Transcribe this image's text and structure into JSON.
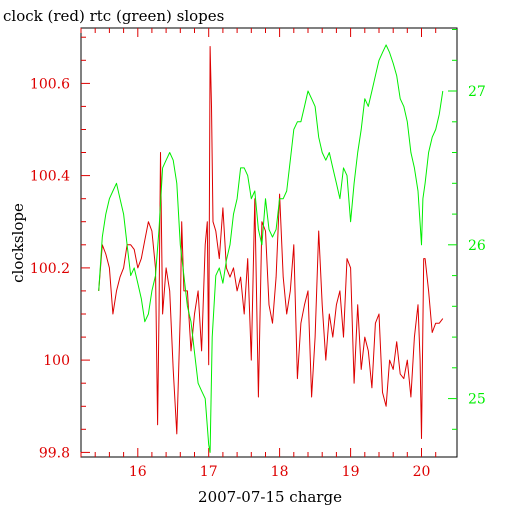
{
  "chart_data": {
    "type": "line",
    "title": "clock (red) rtc (green) slopes",
    "xlabel": "2007-07-15 charge",
    "ylabel": "clockslope",
    "xlim": [
      15.2,
      20.5
    ],
    "ylim": [
      99.79,
      100.72
    ],
    "y2lim": [
      24.62,
      27.41
    ],
    "x_ticks": [
      {
        "value": 16,
        "label": "16"
      },
      {
        "value": 17,
        "label": "17"
      },
      {
        "value": 18,
        "label": "18"
      },
      {
        "value": 19,
        "label": "19"
      },
      {
        "value": 20,
        "label": "20"
      }
    ],
    "y_ticks": [
      {
        "value": 99.8,
        "label": "99.8"
      },
      {
        "value": 100,
        "label": "100"
      },
      {
        "value": 100.2,
        "label": "100.2"
      },
      {
        "value": 100.4,
        "label": "100.4"
      },
      {
        "value": 100.6,
        "label": "100.6"
      }
    ],
    "y2_ticks": [
      {
        "value": 25,
        "label": "25"
      },
      {
        "value": 26,
        "label": "26"
      },
      {
        "value": 27,
        "label": "27"
      }
    ],
    "colors": {
      "clock": "#dd0000",
      "rtc": "#00ee00",
      "axes": "#000000"
    },
    "series": [
      {
        "axis": "left",
        "color": "#dd0000",
        "x": [
          15.45,
          15.5,
          15.55,
          15.6,
          15.65,
          15.7,
          15.75,
          15.8,
          15.85,
          15.9,
          15.95,
          16.0,
          16.05,
          16.1,
          16.15,
          16.2,
          16.25,
          16.28,
          16.3,
          16.32,
          16.35,
          16.4,
          16.45,
          16.5,
          16.55,
          16.6,
          16.62,
          16.65,
          16.7,
          16.75,
          16.8,
          16.85,
          16.9,
          16.95,
          16.98,
          17.0,
          17.02,
          17.04,
          17.06,
          17.1,
          17.15,
          17.2,
          17.25,
          17.3,
          17.35,
          17.4,
          17.45,
          17.5,
          17.55,
          17.6,
          17.65,
          17.7,
          17.75,
          17.8,
          17.85,
          17.9,
          17.95,
          18.0,
          18.05,
          18.1,
          18.15,
          18.2,
          18.25,
          18.3,
          18.35,
          18.4,
          18.45,
          18.5,
          18.55,
          18.6,
          18.65,
          18.7,
          18.75,
          18.8,
          18.85,
          18.9,
          18.95,
          19.0,
          19.05,
          19.1,
          19.15,
          19.2,
          19.25,
          19.3,
          19.35,
          19.4,
          19.45,
          19.5,
          19.55,
          19.6,
          19.65,
          19.7,
          19.75,
          19.8,
          19.85,
          19.9,
          19.95,
          19.98,
          20.0,
          20.03,
          20.05,
          20.1,
          20.15,
          20.2,
          20.25,
          20.3
        ],
        "y": [
          100.15,
          100.25,
          100.23,
          100.2,
          100.1,
          100.15,
          100.18,
          100.2,
          100.25,
          100.25,
          100.24,
          100.2,
          100.22,
          100.26,
          100.3,
          100.28,
          100.2,
          99.86,
          100.1,
          100.45,
          100.1,
          100.2,
          100.15,
          99.98,
          99.84,
          100.1,
          100.3,
          100.15,
          100.15,
          100.02,
          100.1,
          100.15,
          100.02,
          100.25,
          100.3,
          99.99,
          100.68,
          100.55,
          100.3,
          100.28,
          100.22,
          100.33,
          100.2,
          100.18,
          100.2,
          100.15,
          100.18,
          100.1,
          100.22,
          100.0,
          100.35,
          99.92,
          100.3,
          100.28,
          100.12,
          100.08,
          100.18,
          100.36,
          100.18,
          100.1,
          100.15,
          100.25,
          99.96,
          100.08,
          100.12,
          100.15,
          99.92,
          100.05,
          100.28,
          100.12,
          100.0,
          100.1,
          100.05,
          100.12,
          100.15,
          100.05,
          100.22,
          100.2,
          99.95,
          100.12,
          99.98,
          100.05,
          100.02,
          99.94,
          100.08,
          100.1,
          99.93,
          99.9,
          100.0,
          99.98,
          100.04,
          99.97,
          99.96,
          100.0,
          99.92,
          100.05,
          100.12,
          100.0,
          99.83,
          100.22,
          100.22,
          100.15,
          100.06,
          100.08,
          100.08,
          100.09
        ]
      },
      {
        "axis": "right",
        "color": "#00ee00",
        "x": [
          15.45,
          15.5,
          15.55,
          15.6,
          15.65,
          15.7,
          15.75,
          15.8,
          15.85,
          15.9,
          15.95,
          16.0,
          16.05,
          16.1,
          16.15,
          16.2,
          16.25,
          16.3,
          16.35,
          16.4,
          16.45,
          16.5,
          16.55,
          16.6,
          16.65,
          16.7,
          16.75,
          16.8,
          16.85,
          16.9,
          16.95,
          17.0,
          17.02,
          17.05,
          17.1,
          17.15,
          17.2,
          17.25,
          17.3,
          17.35,
          17.4,
          17.45,
          17.5,
          17.55,
          17.6,
          17.65,
          17.7,
          17.75,
          17.8,
          17.85,
          17.9,
          17.95,
          18.0,
          18.05,
          18.1,
          18.15,
          18.2,
          18.25,
          18.3,
          18.35,
          18.4,
          18.45,
          18.5,
          18.55,
          18.6,
          18.65,
          18.7,
          18.75,
          18.8,
          18.85,
          18.9,
          18.95,
          19.0,
          19.05,
          19.1,
          19.15,
          19.2,
          19.25,
          19.3,
          19.35,
          19.4,
          19.45,
          19.5,
          19.55,
          19.6,
          19.65,
          19.7,
          19.75,
          19.8,
          19.85,
          19.9,
          19.95,
          20.0,
          20.02,
          20.05,
          20.1,
          20.15,
          20.2,
          20.25,
          20.3
        ],
        "y": [
          25.7,
          26.05,
          26.2,
          26.3,
          26.35,
          26.4,
          26.3,
          26.2,
          26.0,
          25.8,
          25.85,
          25.75,
          25.65,
          25.5,
          25.55,
          25.7,
          25.8,
          26.1,
          26.5,
          26.55,
          26.6,
          26.55,
          26.4,
          26.0,
          25.8,
          25.6,
          25.5,
          25.3,
          25.1,
          25.05,
          25.0,
          24.7,
          24.65,
          25.4,
          25.8,
          25.85,
          25.75,
          25.9,
          26.0,
          26.2,
          26.3,
          26.5,
          26.5,
          26.45,
          26.3,
          26.35,
          26.1,
          26.0,
          26.3,
          26.1,
          26.05,
          26.1,
          26.3,
          26.3,
          26.35,
          26.55,
          26.75,
          26.8,
          26.8,
          26.9,
          27.0,
          26.95,
          26.9,
          26.7,
          26.6,
          26.55,
          26.6,
          26.5,
          26.4,
          26.3,
          26.5,
          26.45,
          26.15,
          26.4,
          26.6,
          26.75,
          26.95,
          26.9,
          27.0,
          27.1,
          27.2,
          27.25,
          27.3,
          27.25,
          27.18,
          27.1,
          26.95,
          26.9,
          26.8,
          26.6,
          26.5,
          26.35,
          26.0,
          26.3,
          26.4,
          26.6,
          26.7,
          26.75,
          26.85,
          27.0
        ]
      }
    ]
  }
}
